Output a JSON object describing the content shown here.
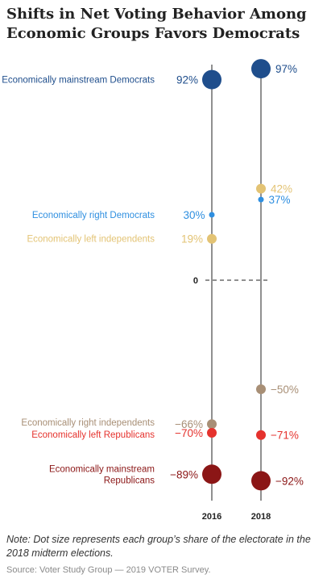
{
  "title": "Shifts in Net Voting Behavior Among Economic Groups Favors Democrats",
  "note": "Note: Dot size represents each group’s share of the electorate in the 2018 midterm elections.",
  "source": "Source: Voter Study Group — 2019 VOTER Survey.",
  "chart_data": {
    "type": "scatter",
    "title": "Shifts in Net Voting Behavior Among Economic Groups Favors Democrats",
    "x": [
      "2016",
      "2018"
    ],
    "zero_label": "0",
    "ylim": [
      -100,
      100
    ],
    "grid": false,
    "series": [
      {
        "name": "Economically mainstream Democrats",
        "values": [
          92,
          97
        ],
        "value_labels": [
          "92%",
          "97%"
        ],
        "color": "#1f4e8c",
        "size": "large"
      },
      {
        "name": "Economically right Democrats",
        "values": [
          30,
          37
        ],
        "value_labels": [
          "30%",
          "37%"
        ],
        "color": "#2f8fe0",
        "size": "small"
      },
      {
        "name": "Economically left independents",
        "values": [
          19,
          42
        ],
        "value_labels": [
          "19%",
          "42%"
        ],
        "color": "#e3c374",
        "size": "medium"
      },
      {
        "name": "Economically right independents",
        "values": [
          -66,
          -50
        ],
        "value_labels": [
          "−66%",
          "−50%"
        ],
        "color": "#a88f76",
        "size": "medium"
      },
      {
        "name": "Economically left Republicans",
        "values": [
          -70,
          -71
        ],
        "value_labels": [
          "−70%",
          "−71%"
        ],
        "color": "#e5322d",
        "size": "medium"
      },
      {
        "name": "Economically mainstream Republicans",
        "values": [
          -89,
          -92
        ],
        "value_labels": [
          "−89%",
          "−92%"
        ],
        "color": "#8b1616",
        "size": "large"
      }
    ]
  }
}
